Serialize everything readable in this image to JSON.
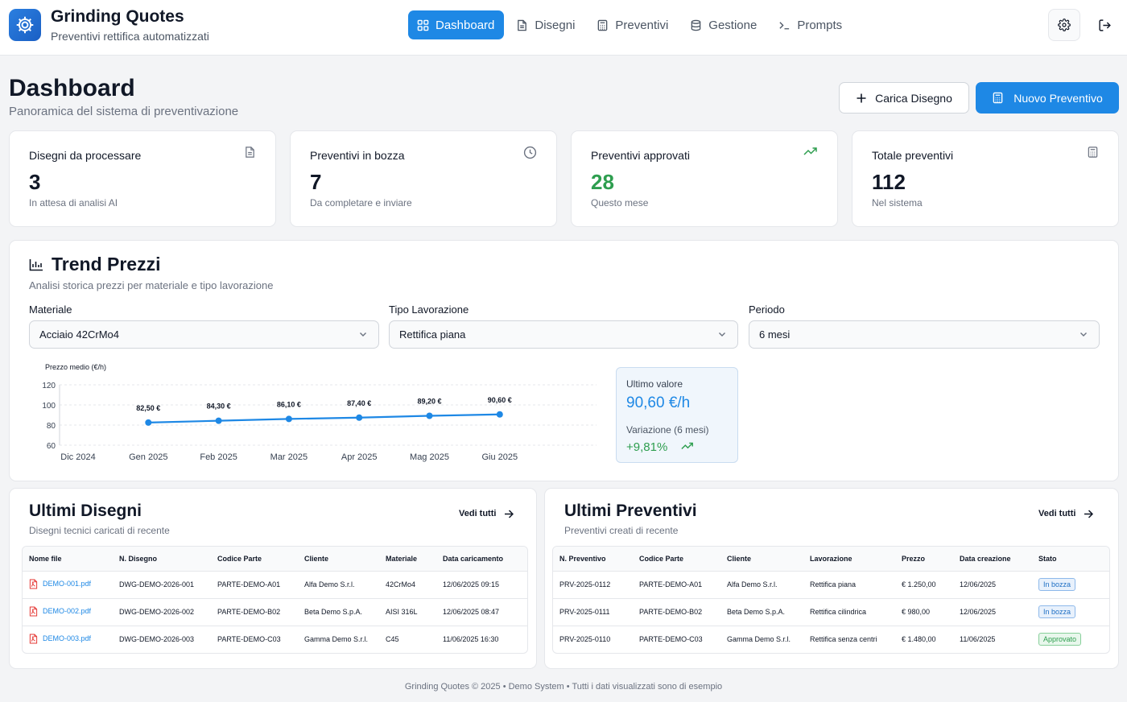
{
  "app": {
    "title": "Grinding Quotes",
    "subtitle": "Preventivi rettifica automatizzati"
  },
  "nav": [
    {
      "label": "Dashboard",
      "icon": "grid-icon",
      "active": true
    },
    {
      "label": "Disegni",
      "icon": "document-icon",
      "active": false
    },
    {
      "label": "Preventivi",
      "icon": "calculator-icon",
      "active": false
    },
    {
      "label": "Gestione",
      "icon": "database-icon",
      "active": false
    },
    {
      "label": "Prompts",
      "icon": "terminal-icon",
      "active": false
    }
  ],
  "page": {
    "title": "Dashboard",
    "subtitle": "Panoramica del sistema di preventivazione",
    "upload_button": "Carica Disegno",
    "new_quote_button": "Nuovo Preventivo"
  },
  "stats": [
    {
      "title": "Disegni da processare",
      "value": "3",
      "note": "In attesa di analisi AI",
      "icon": "document-icon"
    },
    {
      "title": "Preventivi in bozza",
      "value": "7",
      "note": "Da completare e inviare",
      "icon": "clock-icon"
    },
    {
      "title": "Preventivi approvati",
      "value": "28",
      "note": "Questo mese",
      "icon": "trending-up-icon"
    },
    {
      "title": "Totale preventivi",
      "value": "112",
      "note": "Nel sistema",
      "icon": "calculator-icon"
    }
  ],
  "trend": {
    "title": "Trend Prezzi",
    "subtitle": "Analisi storica prezzi per materiale e tipo lavorazione",
    "filters": [
      {
        "label": "Materiale",
        "value": "Acciaio 42CrMo4"
      },
      {
        "label": "Tipo Lavorazione",
        "value": "Rettifica piana"
      },
      {
        "label": "Periodo",
        "value": "6 mesi"
      }
    ],
    "summary": {
      "last_label": "Ultimo valore",
      "last_value": "90,60 €/h",
      "change_label": "Variazione (6 mesi)",
      "change_value": "+9,81%"
    }
  },
  "chart_data": {
    "type": "line",
    "ylabel": "Prezzo medio (€/h)",
    "categories": [
      "Dic 2024",
      "Gen 2025",
      "Feb 2025",
      "Mar 2025",
      "Apr 2025",
      "Mag 2025",
      "Giu 2025"
    ],
    "x_ticks": [
      "Dic 2024",
      "Gen 2025",
      "Feb 2025",
      "Mar 2025",
      "Apr 2025",
      "Mag 2025",
      "Giu 2025"
    ],
    "y_ticks": [
      "120",
      "100",
      "80",
      "60"
    ],
    "ylim": [
      60,
      120
    ],
    "series": [
      {
        "color": "#1e88e5",
        "points": [
          {
            "x": "Gen 2025",
            "y": 82.5,
            "label": "82,50 €"
          },
          {
            "x": "Feb 2025",
            "y": 84.3,
            "label": "84,30 €"
          },
          {
            "x": "Mar 2025",
            "y": 86.1,
            "label": "86,10 €"
          },
          {
            "x": "Apr 2025",
            "y": 87.4,
            "label": "87,40 €"
          },
          {
            "x": "Mag 2025",
            "y": 89.2,
            "label": "89,20 €"
          },
          {
            "x": "Giu 2025",
            "y": 90.6,
            "label": "90,60 €"
          }
        ]
      }
    ],
    "grid": "horizontal dashed"
  },
  "drawings": {
    "title": "Ultimi Disegni",
    "subtitle": "Disegni tecnici caricati di recente",
    "see_all": "Vedi tutti",
    "columns": [
      "Nome file",
      "N. Disegno",
      "Codice Parte",
      "Cliente",
      "Materiale",
      "Data caricamento"
    ],
    "rows": [
      [
        "DEMO-001.pdf",
        "DWG-DEMO-2026-001",
        "PARTE-DEMO-A01",
        "Alfa Demo S.r.l.",
        "42CrMo4",
        "12/06/2025 09:15"
      ],
      [
        "DEMO-002.pdf",
        "DWG-DEMO-2026-002",
        "PARTE-DEMO-B02",
        "Beta Demo S.p.A.",
        "AISI 316L",
        "12/06/2025 08:47"
      ],
      [
        "DEMO-003.pdf",
        "DWG-DEMO-2026-003",
        "PARTE-DEMO-C03",
        "Gamma Demo S.r.l.",
        "C45",
        "11/06/2025 16:30"
      ]
    ]
  },
  "quotes": {
    "title": "Ultimi Preventivi",
    "subtitle": "Preventivi creati di recente",
    "see_all": "Vedi tutti",
    "columns": [
      "N. Preventivo",
      "Codice Parte",
      "Cliente",
      "Lavorazione",
      "Prezzo",
      "Data creazione",
      "Stato"
    ],
    "rows": [
      [
        "PRV-2025-0112",
        "PARTE-DEMO-A01",
        "Alfa Demo S.r.l.",
        "Rettifica piana",
        "€ 1.250,00",
        "12/06/2025",
        "In bozza"
      ],
      [
        "PRV-2025-0111",
        "PARTE-DEMO-B02",
        "Beta Demo S.p.A.",
        "Rettifica cilindrica",
        "€ 980,00",
        "12/06/2025",
        "In bozza"
      ],
      [
        "PRV-2025-0110",
        "PARTE-DEMO-C03",
        "Gamma Demo S.r.l.",
        "Rettifica senza centri",
        "€ 1.480,00",
        "11/06/2025",
        "Approvato"
      ]
    ]
  },
  "footer": "Grinding Quotes © 2025  •  Demo System  •  Tutti i dati visualizzati sono di esempio"
}
